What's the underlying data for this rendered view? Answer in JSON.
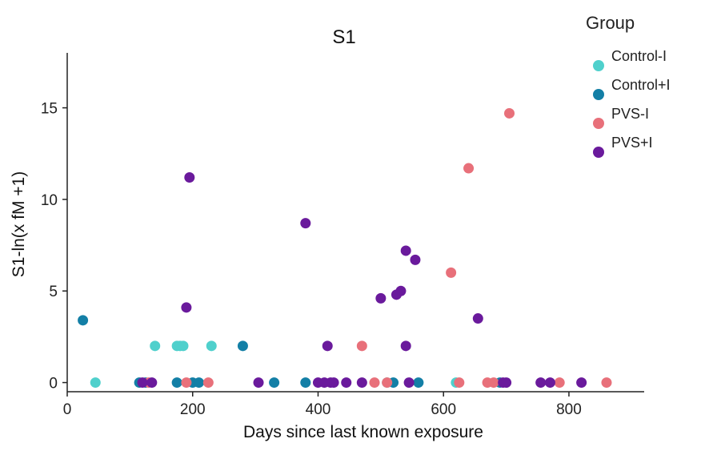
{
  "chart_data": {
    "type": "scatter",
    "title": "S1",
    "xlabel": "Days since last known exposure",
    "ylabel": "S1-ln(x fM +1)",
    "xlim": [
      0,
      920
    ],
    "ylim": [
      -0.5,
      18
    ],
    "xticks": [
      0,
      200,
      400,
      600,
      800
    ],
    "yticks": [
      0,
      5,
      10,
      15
    ],
    "grid": false,
    "legend": {
      "title": "Group",
      "position": "top-right"
    },
    "series": [
      {
        "name": "Control-I",
        "color": "#4fd0cc",
        "points": [
          [
            45,
            0
          ],
          [
            140,
            2
          ],
          [
            175,
            2
          ],
          [
            180,
            2
          ],
          [
            185,
            2
          ],
          [
            230,
            2
          ],
          [
            510,
            0
          ],
          [
            620,
            0
          ]
        ]
      },
      {
        "name": "Control+I",
        "color": "#137fa6",
        "points": [
          [
            25,
            3.4
          ],
          [
            115,
            0
          ],
          [
            125,
            0
          ],
          [
            175,
            0
          ],
          [
            200,
            0
          ],
          [
            210,
            0
          ],
          [
            280,
            2
          ],
          [
            330,
            0
          ],
          [
            380,
            0
          ],
          [
            520,
            0
          ],
          [
            560,
            0
          ],
          [
            690,
            0
          ]
        ]
      },
      {
        "name": "PVS-I",
        "color": "#e8707a",
        "points": [
          [
            130,
            0
          ],
          [
            190,
            0
          ],
          [
            225,
            0
          ],
          [
            470,
            2
          ],
          [
            490,
            0
          ],
          [
            510,
            0
          ],
          [
            612,
            6
          ],
          [
            625,
            0
          ],
          [
            640,
            11.7
          ],
          [
            670,
            0
          ],
          [
            680,
            0
          ],
          [
            705,
            14.7
          ],
          [
            785,
            0
          ],
          [
            860,
            0
          ]
        ]
      },
      {
        "name": "PVS+I",
        "color": "#6a1a9c",
        "points": [
          [
            120,
            0
          ],
          [
            135,
            0
          ],
          [
            190,
            4.1
          ],
          [
            195,
            11.2
          ],
          [
            305,
            0
          ],
          [
            380,
            8.7
          ],
          [
            400,
            0
          ],
          [
            410,
            0
          ],
          [
            415,
            2
          ],
          [
            420,
            0
          ],
          [
            425,
            0
          ],
          [
            445,
            0
          ],
          [
            470,
            0
          ],
          [
            500,
            4.6
          ],
          [
            525,
            4.8
          ],
          [
            532,
            5
          ],
          [
            540,
            7.2
          ],
          [
            540,
            2
          ],
          [
            545,
            0
          ],
          [
            555,
            6.7
          ],
          [
            655,
            3.5
          ],
          [
            695,
            0
          ],
          [
            700,
            0
          ],
          [
            755,
            0
          ],
          [
            770,
            0
          ],
          [
            820,
            0
          ]
        ]
      }
    ]
  }
}
